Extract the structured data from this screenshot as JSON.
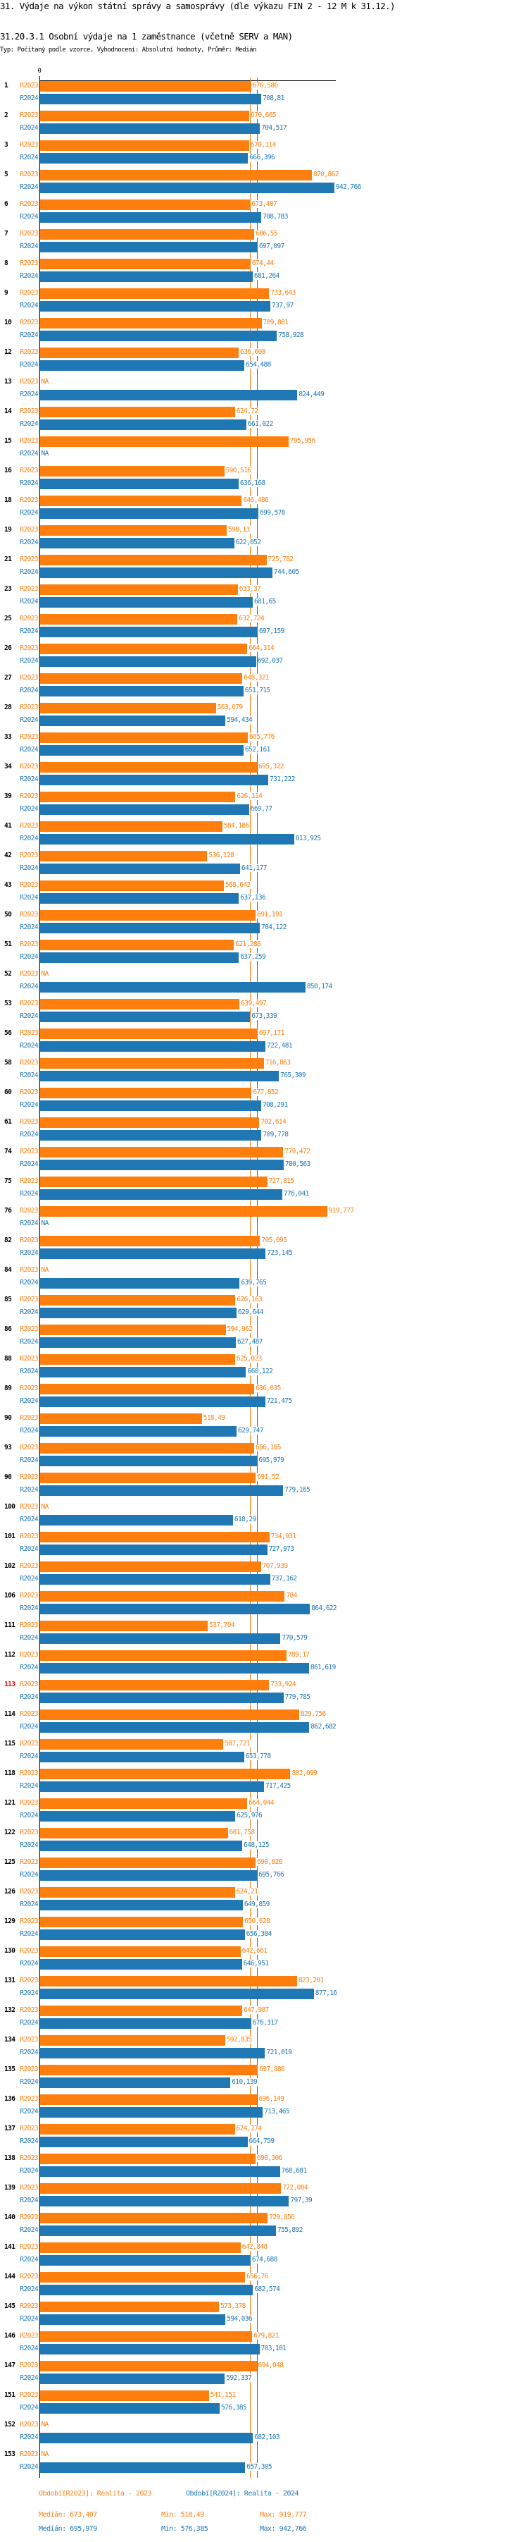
{
  "title": "31. Výdaje na výkon státní správy a samosprávy (dle výkazu FIN 2 - 12 M k 31.12.)",
  "subtitle": "31.20.3.1 Osobní výdaje na 1 zaměstnance (včetně SERV a MAN)",
  "description": "Typ: Počítaný podle vzorce, Vyhodnocení: Absolutní hodnoty, Průměr: Medián",
  "chart_data": {
    "type": "bar",
    "orientation": "horizontal",
    "axis_zero_label": "0",
    "xlim": [
      0,
      942.766
    ],
    "grid": false,
    "highlighted_category": "113",
    "colors": {
      "R2023": "#ff7f0e",
      "R2024": "#1f77b4",
      "highlight": "#ff0000"
    },
    "series_names": [
      "R2023",
      "R2024"
    ],
    "groups": [
      {
        "id": "1",
        "R2023": "676,586",
        "R2024": "708,81"
      },
      {
        "id": "2",
        "R2023": "670,665",
        "R2024": "704,517"
      },
      {
        "id": "3",
        "R2023": "670,114",
        "R2024": "666,396"
      },
      {
        "id": "5",
        "R2023": "870,862",
        "R2024": "942,766"
      },
      {
        "id": "6",
        "R2023": "673,407",
        "R2024": "708,783"
      },
      {
        "id": "7",
        "R2023": "686,55",
        "R2024": "697,097"
      },
      {
        "id": "8",
        "R2023": "674,44",
        "R2024": "681,264"
      },
      {
        "id": "9",
        "R2023": "733,643",
        "R2024": "737,97"
      },
      {
        "id": "10",
        "R2023": "709,881",
        "R2024": "758,928"
      },
      {
        "id": "12",
        "R2023": "636,608",
        "R2024": "654,488"
      },
      {
        "id": "13",
        "R2023": "NA",
        "R2024": "824,449"
      },
      {
        "id": "14",
        "R2023": "624,72",
        "R2024": "661,022"
      },
      {
        "id": "15",
        "R2023": "795,956",
        "R2024": "NA"
      },
      {
        "id": "16",
        "R2023": "590,516",
        "R2024": "636,168"
      },
      {
        "id": "18",
        "R2023": "646,486",
        "R2024": "699,578"
      },
      {
        "id": "19",
        "R2023": "598,13",
        "R2024": "622,052"
      },
      {
        "id": "21",
        "R2023": "725,782",
        "R2024": "744,605"
      },
      {
        "id": "23",
        "R2023": "633,37",
        "R2024": "681,65"
      },
      {
        "id": "25",
        "R2023": "632,724",
        "R2024": "697,159"
      },
      {
        "id": "26",
        "R2023": "664,314",
        "R2024": "692,037"
      },
      {
        "id": "27",
        "R2023": "648,321",
        "R2024": "651,715"
      },
      {
        "id": "28",
        "R2023": "563,679",
        "R2024": "594,434"
      },
      {
        "id": "33",
        "R2023": "665,776",
        "R2024": "652,161"
      },
      {
        "id": "34",
        "R2023": "695,322",
        "R2024": "731,222"
      },
      {
        "id": "39",
        "R2023": "626,114",
        "R2024": "669,77"
      },
      {
        "id": "41",
        "R2023": "584,186",
        "R2024": "813,925"
      },
      {
        "id": "42",
        "R2023": "536,128",
        "R2024": "641,177"
      },
      {
        "id": "43",
        "R2023": "588,642",
        "R2024": "637,136"
      },
      {
        "id": "50",
        "R2023": "691,191",
        "R2024": "704,122"
      },
      {
        "id": "51",
        "R2023": "621,288",
        "R2024": "637,259"
      },
      {
        "id": "52",
        "R2023": "NA",
        "R2024": "850,174"
      },
      {
        "id": "53",
        "R2023": "639,497",
        "R2024": "673,339"
      },
      {
        "id": "56",
        "R2023": "697,171",
        "R2024": "722,481"
      },
      {
        "id": "58",
        "R2023": "716,863",
        "R2024": "765,309"
      },
      {
        "id": "60",
        "R2023": "677,852",
        "R2024": "708,291"
      },
      {
        "id": "61",
        "R2023": "702,614",
        "R2024": "709,778"
      },
      {
        "id": "74",
        "R2023": "779,472",
        "R2024": "780,563"
      },
      {
        "id": "75",
        "R2023": "727,815",
        "R2024": "776,041"
      },
      {
        "id": "76",
        "R2023": "919,777",
        "R2024": "NA"
      },
      {
        "id": "82",
        "R2023": "705,095",
        "R2024": "723,145"
      },
      {
        "id": "84",
        "R2023": "NA",
        "R2024": "639,765"
      },
      {
        "id": "85",
        "R2023": "626,163",
        "R2024": "629,644"
      },
      {
        "id": "86",
        "R2023": "594,962",
        "R2024": "627,487"
      },
      {
        "id": "88",
        "R2023": "625,023",
        "R2024": "660,122"
      },
      {
        "id": "89",
        "R2023": "686,035",
        "R2024": "721,475"
      },
      {
        "id": "90",
        "R2023": "518,49",
        "R2024": "629,747"
      },
      {
        "id": "93",
        "R2023": "686,185",
        "R2024": "695,979"
      },
      {
        "id": "96",
        "R2023": "691,52",
        "R2024": "779,165"
      },
      {
        "id": "100",
        "R2023": "NA",
        "R2024": "618,29"
      },
      {
        "id": "101",
        "R2023": "734,931",
        "R2024": "727,973"
      },
      {
        "id": "102",
        "R2023": "707,939",
        "R2024": "737,162"
      },
      {
        "id": "106",
        "R2023": "784",
        "R2024": "864,622"
      },
      {
        "id": "111",
        "R2023": "537,704",
        "R2024": "770,579"
      },
      {
        "id": "112",
        "R2023": "789,17",
        "R2024": "861,619"
      },
      {
        "id": "113",
        "R2023": "733,924",
        "R2024": "779,785"
      },
      {
        "id": "114",
        "R2023": "829,756",
        "R2024": "862,682"
      },
      {
        "id": "115",
        "R2023": "587,721",
        "R2024": "653,778"
      },
      {
        "id": "118",
        "R2023": "802,099",
        "R2024": "717,425"
      },
      {
        "id": "121",
        "R2023": "664,044",
        "R2024": "625,976"
      },
      {
        "id": "122",
        "R2023": "601,758",
        "R2024": "648,125"
      },
      {
        "id": "125",
        "R2023": "690,828",
        "R2024": "695,766"
      },
      {
        "id": "126",
        "R2023": "624,21",
        "R2024": "649,859"
      },
      {
        "id": "129",
        "R2023": "650,628",
        "R2024": "656,384"
      },
      {
        "id": "130",
        "R2023": "642,661",
        "R2024": "646,951"
      },
      {
        "id": "131",
        "R2023": "823,201",
        "R2024": "877,16"
      },
      {
        "id": "132",
        "R2023": "647,987",
        "R2024": "676,317"
      },
      {
        "id": "134",
        "R2023": "592,835",
        "R2024": "721,019"
      },
      {
        "id": "135",
        "R2023": "697,886",
        "R2024": "610,139"
      },
      {
        "id": "136",
        "R2023": "696,149",
        "R2024": "713,465"
      },
      {
        "id": "137",
        "R2023": "624,274",
        "R2024": "664,759"
      },
      {
        "id": "138",
        "R2023": "690,306",
        "R2024": "768,681"
      },
      {
        "id": "139",
        "R2023": "772,084",
        "R2024": "797,39"
      },
      {
        "id": "140",
        "R2023": "729,856",
        "R2024": "755,892"
      },
      {
        "id": "141",
        "R2023": "642,848",
        "R2024": "674,688"
      },
      {
        "id": "144",
        "R2023": "656,76",
        "R2024": "682,574"
      },
      {
        "id": "145",
        "R2023": "573,378",
        "R2024": "594,036"
      },
      {
        "id": "146",
        "R2023": "679,821",
        "R2024": "703,101"
      },
      {
        "id": "147",
        "R2023": "694,048",
        "R2024": "592,337"
      },
      {
        "id": "151",
        "R2023": "541,151",
        "R2024": "576,385"
      },
      {
        "id": "152",
        "R2023": "NA",
        "R2024": "682,103"
      },
      {
        "id": "153",
        "R2023": "NA",
        "R2024": "657,305"
      }
    ],
    "reference_lines": {
      "R2023_median": 673.407,
      "R2024_median": 695.979
    }
  },
  "legend": {
    "r2023": "Období[R2023]: Realita - 2023",
    "r2024": "Období[R2024]: Realita - 2024"
  },
  "stats": {
    "r2023": {
      "median": "Medián: 673,407",
      "min": "Min: 518,49",
      "max": "Max: 919,777"
    },
    "r2024": {
      "median": "Medián: 695,979",
      "min": "Min: 576,385",
      "max": "Max: 942,766"
    }
  }
}
